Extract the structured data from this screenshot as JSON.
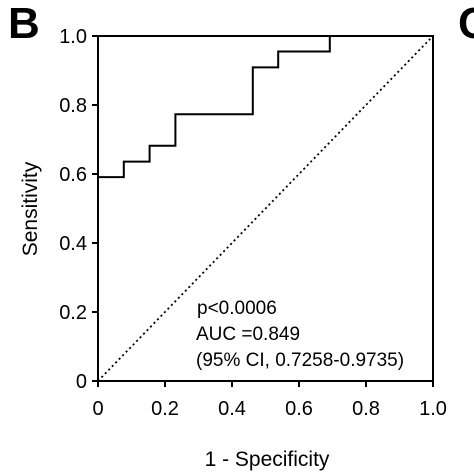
{
  "panel": {
    "letter": "B",
    "next_letter_fragment": "C"
  },
  "chart_data": {
    "type": "line",
    "title": "",
    "xlabel": "1 - Specificity",
    "ylabel": "Sensitivity",
    "xlim": [
      0,
      1
    ],
    "ylim": [
      0,
      1
    ],
    "x_ticks": [
      "0",
      "0.2",
      "0.4",
      "0.6",
      "0.8",
      "1.0"
    ],
    "y_ticks": [
      "0",
      "0.2",
      "0.4",
      "0.6",
      "0.8",
      "1.0"
    ],
    "grid": false,
    "series": [
      {
        "style": "solid-step",
        "x": [
          0,
          0,
          0.077,
          0.077,
          0.154,
          0.154,
          0.231,
          0.231,
          0.462,
          0.462,
          0.538,
          0.538,
          0.692,
          0.692
        ],
        "y": [
          0,
          0.591,
          0.591,
          0.636,
          0.636,
          0.682,
          0.682,
          0.773,
          0.773,
          0.909,
          0.909,
          0.955,
          0.955,
          1.0
        ]
      },
      {
        "style": "dotted",
        "x": [
          0,
          1
        ],
        "y": [
          0,
          1
        ]
      }
    ],
    "annotations": [
      "p<0.0006",
      "AUC =0.849",
      "(95% CI, 0.7258-0.9735)"
    ]
  },
  "colors": {
    "line": "#000000",
    "background": "#ffffff"
  }
}
